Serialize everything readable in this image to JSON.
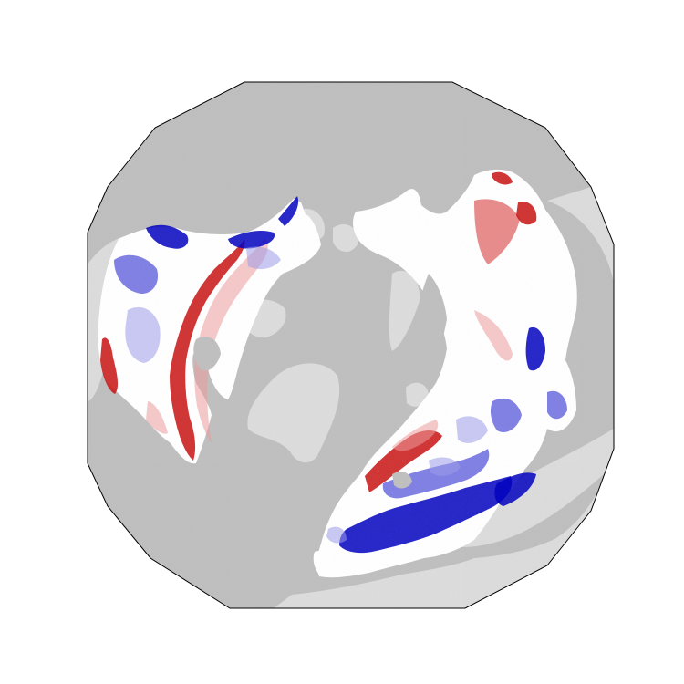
{
  "map": {
    "projection": "north-polar-stereographic",
    "colors": {
      "ocean": "#bfbfbf",
      "land": "#dcdcdc",
      "border": "#000000",
      "data_base": "#ffffff",
      "positive": "#d62020",
      "negative": "#0a0ac8"
    },
    "palette_low_to_high": [
      "#0000c0",
      "#4a4ad8",
      "#9a9aea",
      "#d8d8f6",
      "#ffffff",
      "#f6d8d8",
      "#ec9a9a",
      "#de5a5a",
      "#c81010"
    ]
  }
}
